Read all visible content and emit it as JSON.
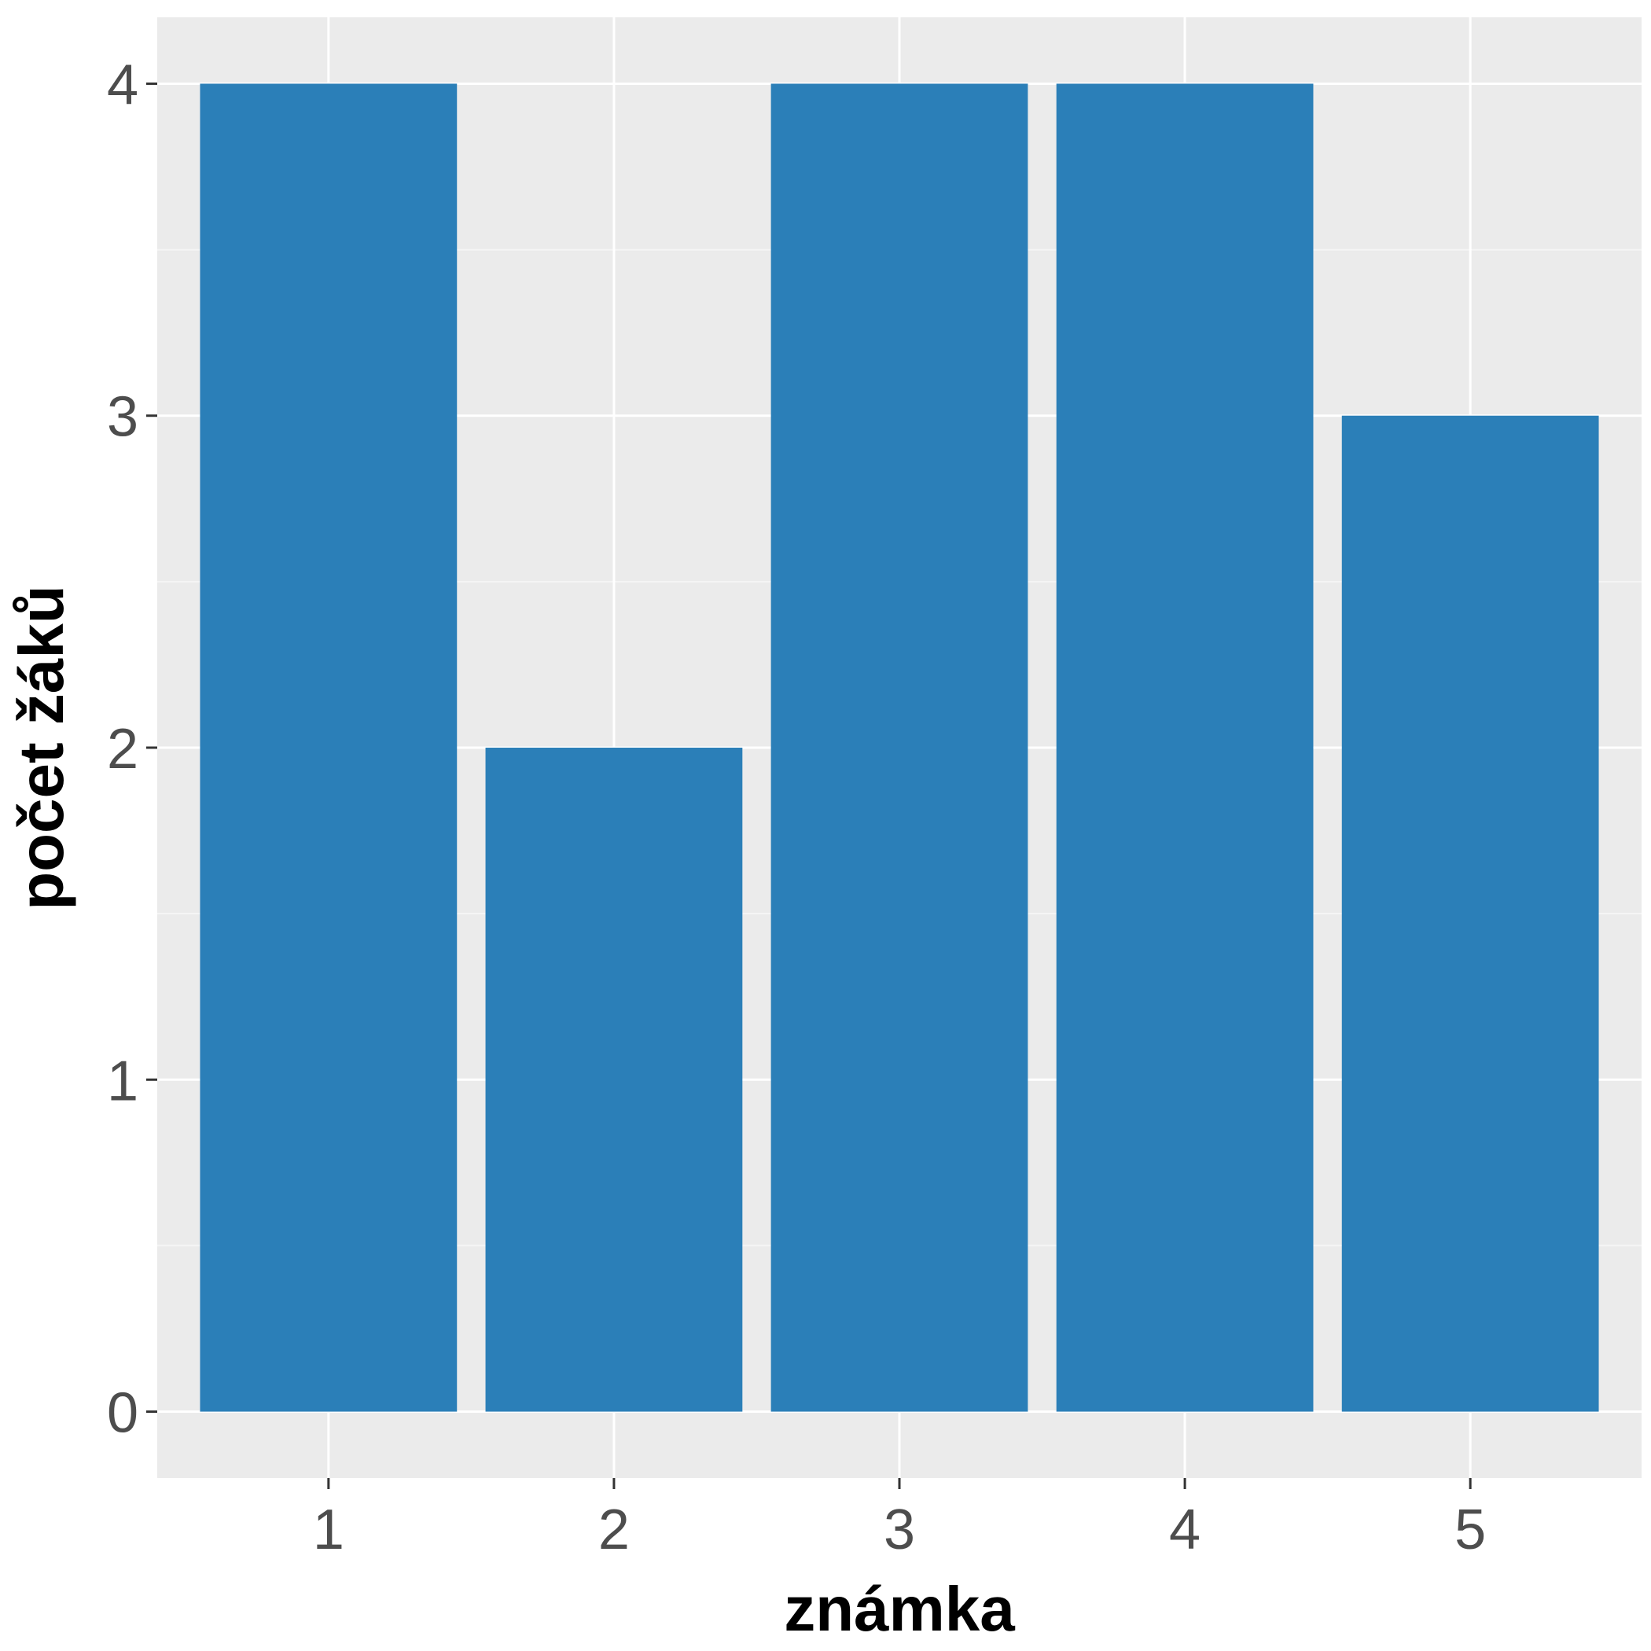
{
  "colors": {
    "panel_background": "#EBEBEB",
    "grid_major": "#FFFFFF",
    "grid_minor": "#F5F5F5",
    "bar_fill": "#2B7FB8",
    "tick_mark": "#333333",
    "tick_label": "#4D4D4D",
    "axis_title": "#000000"
  },
  "chart_data": {
    "type": "bar",
    "categories": [
      "1",
      "2",
      "3",
      "4",
      "5"
    ],
    "values": [
      4,
      2,
      4,
      4,
      3
    ],
    "title": "",
    "xlabel": "známka",
    "ylabel": "počet žáků",
    "ylim": [
      -0.2,
      4.2
    ],
    "yticks": [
      0,
      1,
      2,
      3,
      4
    ],
    "grid": true,
    "legend": "none"
  }
}
